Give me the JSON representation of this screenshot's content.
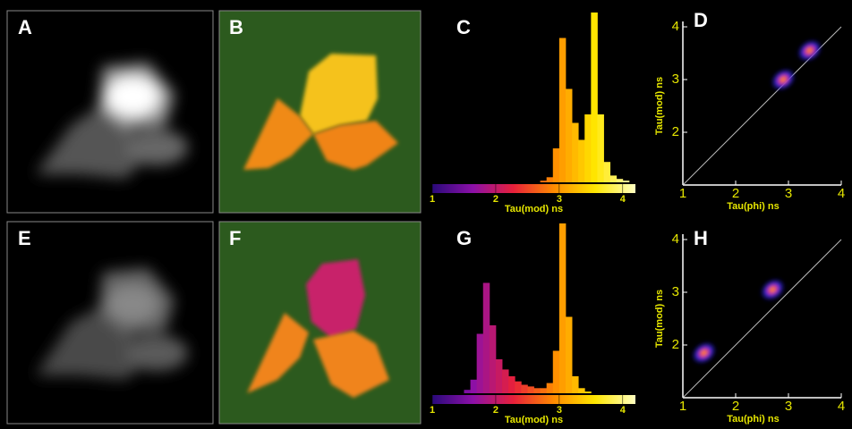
{
  "image_panels": [
    {
      "label": "A"
    },
    {
      "label": "B"
    },
    {
      "label": "E"
    },
    {
      "label": "F"
    }
  ],
  "chart_data": [
    {
      "type": "histogram",
      "label": "C",
      "xlabel": "Tau(mod) ns",
      "bins": [
        1.0,
        1.1,
        1.2,
        1.3,
        1.4,
        1.5,
        1.6,
        1.7,
        1.8,
        1.9,
        2.0,
        2.1,
        2.2,
        2.3,
        2.4,
        2.5,
        2.6,
        2.7,
        2.8,
        2.9,
        3.0,
        3.1,
        3.2,
        3.3,
        3.4,
        3.5,
        3.6,
        3.7,
        3.8,
        3.9,
        4.0,
        4.1,
        4.2
      ],
      "values": [
        0,
        0,
        0,
        0,
        0,
        0,
        0,
        0,
        0,
        0,
        0,
        0,
        0,
        0,
        0,
        0,
        0,
        1,
        3,
        20,
        85,
        55,
        35,
        25,
        40,
        100,
        40,
        12,
        4,
        2,
        1,
        0
      ],
      "xlim": [
        1,
        4.2
      ],
      "xticks": [
        1,
        2,
        3,
        4
      ],
      "colormap": [
        "#2a0a7a",
        "#8c10a8",
        "#e8203a",
        "#ff8c00",
        "#ffe600",
        "#ffffc0"
      ]
    },
    {
      "type": "density",
      "label": "D",
      "xlabel": "Tau(phi) ns",
      "ylabel": "Tau(mod) ns",
      "x": [
        2.9,
        3.4
      ],
      "y": [
        3.0,
        3.55
      ],
      "xlim": [
        1,
        4
      ],
      "ylim": [
        1,
        4
      ],
      "xticks": [
        1,
        2,
        3,
        4
      ],
      "yticks": [
        2,
        3,
        4
      ]
    },
    {
      "type": "histogram",
      "label": "G",
      "xlabel": "Tau(mod) ns",
      "bins": [
        1.0,
        1.1,
        1.2,
        1.3,
        1.4,
        1.5,
        1.6,
        1.7,
        1.8,
        1.9,
        2.0,
        2.1,
        2.2,
        2.3,
        2.4,
        2.5,
        2.6,
        2.7,
        2.8,
        2.9,
        3.0,
        3.1,
        3.2,
        3.3,
        3.4,
        3.5,
        3.6,
        3.7,
        3.8,
        3.9,
        4.0,
        4.1,
        4.2
      ],
      "values": [
        0,
        0,
        0,
        0,
        0,
        2,
        8,
        35,
        65,
        40,
        20,
        14,
        10,
        7,
        5,
        4,
        3,
        3,
        6,
        25,
        100,
        45,
        10,
        3,
        1,
        0,
        0,
        0,
        0,
        0,
        0,
        0
      ],
      "xlim": [
        1,
        4.2
      ],
      "xticks": [
        1,
        2,
        3,
        4
      ],
      "colormap": [
        "#2a0a7a",
        "#8c10a8",
        "#e8203a",
        "#ff8c00",
        "#ffe600",
        "#ffffc0"
      ]
    },
    {
      "type": "density",
      "label": "H",
      "xlabel": "Tau(phi) ns",
      "ylabel": "Tau(mod) ns",
      "x": [
        1.4,
        2.7
      ],
      "y": [
        1.85,
        3.05
      ],
      "xlim": [
        1,
        4
      ],
      "ylim": [
        1,
        4
      ],
      "xticks": [
        1,
        2,
        3,
        4
      ],
      "yticks": [
        2,
        3,
        4
      ]
    }
  ]
}
